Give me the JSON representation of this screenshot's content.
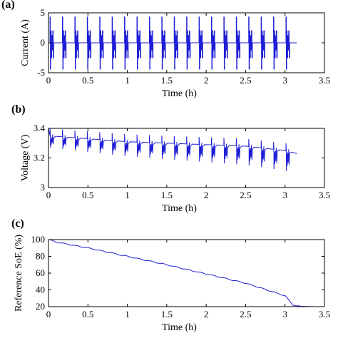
{
  "figure": {
    "series_color": "#1f1fd6"
  },
  "chart_data": [
    {
      "panel_label": "(a)",
      "type": "line",
      "xlabel": "Time (h)",
      "ylabel": "Current (A)",
      "xlim": [
        0,
        3.5
      ],
      "ylim": [
        -5,
        5
      ],
      "xticks": [
        0,
        0.5,
        1,
        1.5,
        2,
        2.5,
        3,
        3.5
      ],
      "xticklabels": [
        "0",
        "0.5",
        "1",
        "1.5",
        "2",
        "2.5",
        "3",
        "3.5"
      ],
      "yticks": [
        -5,
        0,
        5
      ],
      "yticklabels": [
        "-5",
        "0",
        "5"
      ],
      "grid": false,
      "pulse_cycles": 20,
      "time_end_h": 3.15,
      "current_levels_A": [
        -4.4,
        -2.5,
        -1.2,
        0,
        1.2,
        2.0,
        4.3
      ]
    },
    {
      "panel_label": "(b)",
      "type": "line",
      "xlabel": "Time (h)",
      "ylabel": "Voltage (V)",
      "xlim": [
        0,
        3.5
      ],
      "ylim": [
        3,
        3.4
      ],
      "xticks": [
        0,
        0.5,
        1,
        1.5,
        2,
        2.5,
        3,
        3.5
      ],
      "xticklabels": [
        "0",
        "0.5",
        "1",
        "1.5",
        "2",
        "2.5",
        "3",
        "3.5"
      ],
      "yticks": [
        3,
        3.2,
        3.4
      ],
      "yticklabels": [
        "3",
        "3.2",
        "3.4"
      ],
      "grid": false,
      "pulse_cycles": 20,
      "time_end_h": 3.15,
      "baseline_V": {
        "x": [
          0,
          0.5,
          1,
          1.5,
          2,
          2.5,
          3,
          3.15
        ],
        "y": [
          3.35,
          3.33,
          3.31,
          3.3,
          3.29,
          3.28,
          3.25,
          3.23
        ]
      },
      "spike_max_V": 3.37,
      "spike_min_V": 3.08
    },
    {
      "panel_label": "(c)",
      "type": "line",
      "xlabel": "Time (h)",
      "ylabel": "Reference SoE (%)",
      "xlim": [
        0,
        3.5
      ],
      "ylim": [
        20,
        100
      ],
      "xticks": [
        0,
        0.5,
        1,
        1.5,
        2,
        2.5,
        3,
        3.5
      ],
      "xticklabels": [
        "0",
        "0.5",
        "1",
        "1.5",
        "2",
        "2.5",
        "3",
        "3.5"
      ],
      "yticks": [
        20,
        40,
        60,
        80,
        100
      ],
      "yticklabels": [
        "20",
        "40",
        "60",
        "80",
        "100"
      ],
      "grid": false,
      "x": [
        0,
        0.1,
        0.5,
        1.0,
        1.5,
        2.0,
        2.5,
        3.0,
        3.1,
        3.2
      ],
      "y": [
        100,
        97,
        90,
        80,
        70,
        59,
        48,
        33,
        22,
        20
      ]
    }
  ]
}
